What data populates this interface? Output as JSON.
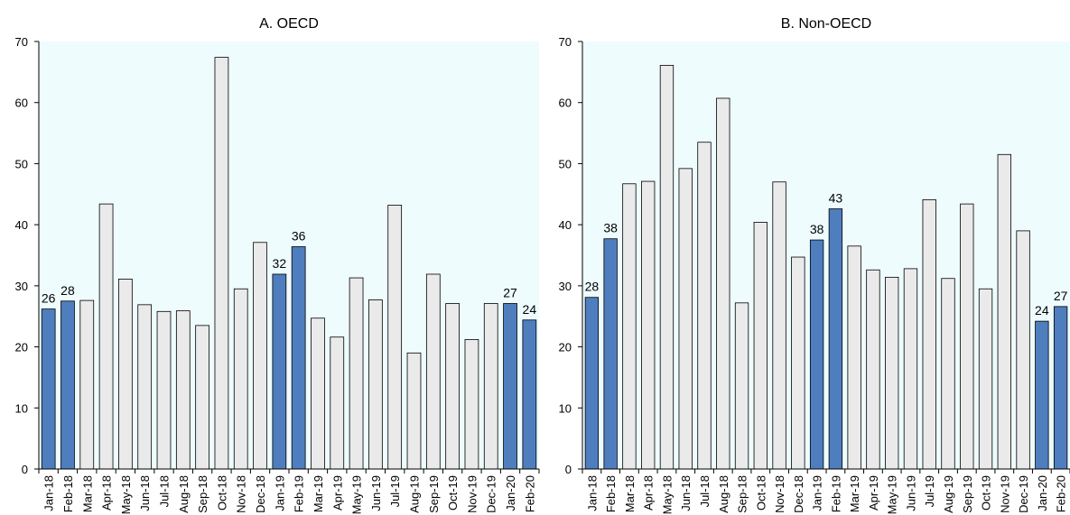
{
  "colors": {
    "plot_background": "#eefcfe",
    "highlight_bar": "#4f7ebe",
    "regular_bar": "#eaeaea",
    "bar_stroke": "#000000"
  },
  "chart_data": [
    {
      "type": "bar",
      "title": "A. OECD",
      "xlabel": "",
      "ylabel": "",
      "ylim": [
        0,
        70
      ],
      "yticks": [
        0,
        10,
        20,
        30,
        40,
        50,
        60,
        70
      ],
      "grid": false,
      "categories": [
        "Jan-18",
        "Feb-18",
        "Mar-18",
        "Apr-18",
        "May-18",
        "Jun-18",
        "Jul-18",
        "Aug-18",
        "Sep-18",
        "Oct-18",
        "Nov-18",
        "Dec-18",
        "Jan-19",
        "Feb-19",
        "Mar-19",
        "Apr-19",
        "May-19",
        "Jun-19",
        "Jul-19",
        "Aug-19",
        "Sep-19",
        "Oct-19",
        "Nov-19",
        "Dec-19",
        "Jan-20",
        "Feb-20"
      ],
      "values": [
        26.2,
        27.5,
        27.6,
        43.4,
        31.1,
        26.9,
        25.8,
        25.9,
        23.5,
        67.4,
        29.5,
        37.1,
        31.9,
        36.4,
        24.7,
        21.6,
        31.3,
        27.7,
        43.2,
        19.0,
        31.9,
        27.1,
        21.2,
        27.1,
        27.1,
        24.4
      ],
      "highlighted": [
        true,
        true,
        false,
        false,
        false,
        false,
        false,
        false,
        false,
        false,
        false,
        false,
        true,
        true,
        false,
        false,
        false,
        false,
        false,
        false,
        false,
        false,
        false,
        false,
        true,
        true
      ],
      "data_labels": [
        "26",
        "28",
        "",
        "",
        "",
        "",
        "",
        "",
        "",
        "",
        "",
        "",
        "32",
        "36",
        "",
        "",
        "",
        "",
        "",
        "",
        "",
        "",
        "",
        "",
        "27",
        "24"
      ]
    },
    {
      "type": "bar",
      "title": "B. Non-OECD",
      "xlabel": "",
      "ylabel": "",
      "ylim": [
        0,
        70
      ],
      "yticks": [
        0,
        10,
        20,
        30,
        40,
        50,
        60,
        70
      ],
      "grid": false,
      "categories": [
        "Jan-18",
        "Feb-18",
        "Mar-18",
        "Apr-18",
        "May-18",
        "Jun-18",
        "Jul-18",
        "Aug-18",
        "Sep-18",
        "Oct-18",
        "Nov-18",
        "Dec-18",
        "Jan-19",
        "Feb-19",
        "Mar-19",
        "Apr-19",
        "May-19",
        "Jun-19",
        "Jul-19",
        "Aug-19",
        "Sep-19",
        "Oct-19",
        "Nov-19",
        "Dec-19",
        "Jan-20",
        "Feb-20"
      ],
      "values": [
        28.1,
        37.7,
        46.7,
        47.1,
        66.1,
        49.2,
        53.5,
        60.7,
        27.2,
        40.4,
        47.0,
        34.7,
        37.5,
        42.6,
        36.5,
        32.6,
        31.4,
        32.8,
        44.1,
        31.2,
        43.4,
        29.5,
        51.5,
        39.0,
        24.2,
        26.6
      ],
      "highlighted": [
        true,
        true,
        false,
        false,
        false,
        false,
        false,
        false,
        false,
        false,
        false,
        false,
        true,
        true,
        false,
        false,
        false,
        false,
        false,
        false,
        false,
        false,
        false,
        false,
        true,
        true
      ],
      "data_labels": [
        "28",
        "38",
        "",
        "",
        "",
        "",
        "",
        "",
        "",
        "",
        "",
        "",
        "38",
        "43",
        "",
        "",
        "",
        "",
        "",
        "",
        "",
        "",
        "",
        "",
        "24",
        "27"
      ]
    }
  ]
}
